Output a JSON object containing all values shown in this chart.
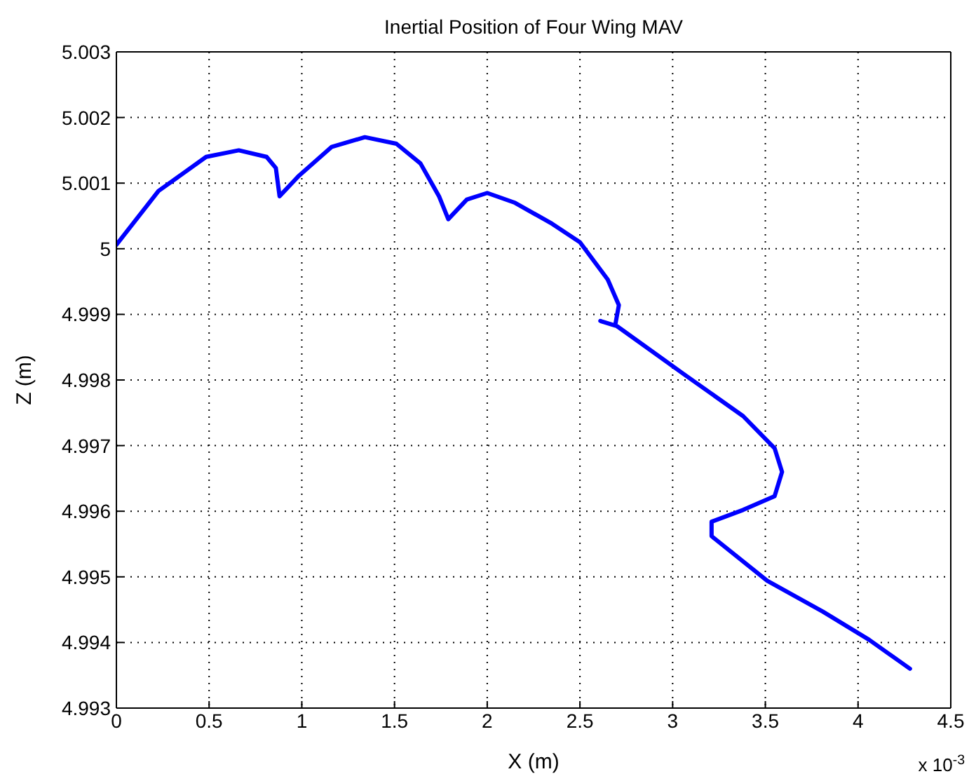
{
  "chart_data": {
    "type": "line",
    "title": "Inertial Position of Four Wing MAV",
    "xlabel": "X (m)",
    "ylabel": "Z (m)",
    "annotations": [
      "x 10$^{-3}$"
    ],
    "x": [
      0,
      0.227,
      0.484,
      0.66,
      0.81,
      0.86,
      0.88,
      0.98,
      1.16,
      1.34,
      1.51,
      1.64,
      1.74,
      1.79,
      1.89,
      2.0,
      2.15,
      2.35,
      2.5,
      2.65,
      2.71,
      2.69,
      2.61,
      2.7,
      3.06,
      3.38,
      3.55,
      3.59,
      3.55,
      3.38,
      3.21,
      3.21,
      3.51,
      3.81,
      4.06,
      4.28
    ],
    "series": [
      {
        "color": "#0000ff",
        "values": [
          5.00006,
          5.00088,
          5.0014,
          5.0015,
          5.0014,
          5.00123,
          5.0008,
          5.0011,
          5.00155,
          5.0017,
          5.0016,
          5.0013,
          5.0008,
          5.00045,
          5.00075,
          5.00085,
          5.0007,
          5.00038,
          5.0001,
          4.99953,
          4.99914,
          4.99883,
          4.9989,
          4.99882,
          4.99809,
          4.99745,
          4.99696,
          4.9966,
          4.99623,
          4.99602,
          4.99584,
          4.99562,
          4.99494,
          4.99447,
          4.99404,
          4.9936
        ]
      }
    ],
    "xlim": [
      0,
      4.5
    ],
    "xticks": [
      0,
      0.5,
      1,
      1.5,
      2,
      2.5,
      3,
      3.5,
      4,
      4.5
    ],
    "ylim": [
      4.993,
      5.003
    ],
    "yticks": [
      4.993,
      4.994,
      4.995,
      4.996,
      4.997,
      4.998,
      4.999,
      5,
      5.001,
      5.002,
      5.003
    ],
    "grid": true,
    "line_style": "solid",
    "marker": "none"
  }
}
